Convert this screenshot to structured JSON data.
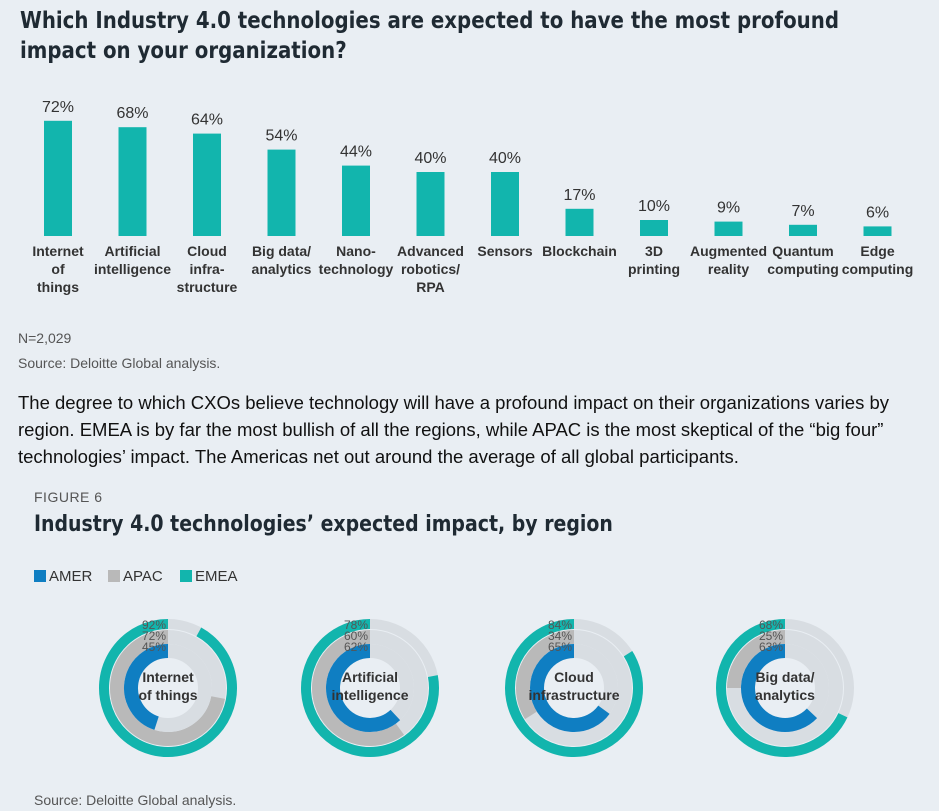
{
  "title": "Which Industry 4.0 technologies are expected to have the most profound impact on your organization?",
  "n_note": "N=2,029",
  "source_top": "Source: Deloitte Global analysis.",
  "paragraph": "The degree to which CXOs believe technology will have a profound impact on their organizations varies by region. EMEA is by far the most bullish of all the regions, while APAC is the most skeptical of the “big four” technologies’ impact. The Americas net out around the average of all global participants.",
  "figure_label": "FIGURE 6",
  "figure_title": "Industry 4.0 technologies’ expected impact, by region",
  "source_bottom": "Source: Deloitte Global analysis.",
  "colors": {
    "bar": "#12b5ad",
    "amer": "#0f7ec2",
    "apac": "#b9b9b9",
    "emea": "#12b5ad",
    "track": "#d8dde2"
  },
  "chart_data": [
    {
      "type": "bar",
      "categories": [
        "Internet of things",
        "Artificial intelligence",
        "Cloud infrastructure",
        "Big data/ analytics",
        "Nano-technology",
        "Advanced robotics/ RPA",
        "Sensors",
        "Blockchain",
        "3D printing",
        "Augmented reality",
        "Quantum computing",
        "Edge computing"
      ],
      "category_lines": [
        [
          "Internet",
          "of",
          "things"
        ],
        [
          "Artificial",
          "intelligence"
        ],
        [
          "Cloud",
          "infra-",
          "structure"
        ],
        [
          "Big data/",
          "analytics"
        ],
        [
          "Nano-",
          "technology"
        ],
        [
          "Advanced",
          "robotics/",
          "RPA"
        ],
        [
          "Sensors"
        ],
        [
          "Blockchain"
        ],
        [
          "3D",
          "printing"
        ],
        [
          "Augmented",
          "reality"
        ],
        [
          "Quantum",
          "computing"
        ],
        [
          "Edge",
          "computing"
        ]
      ],
      "values": [
        72,
        68,
        64,
        54,
        44,
        40,
        40,
        17,
        10,
        9,
        7,
        6
      ],
      "value_labels": [
        "72%",
        "68%",
        "64%",
        "54%",
        "44%",
        "40%",
        "40%",
        "17%",
        "10%",
        "9%",
        "7%",
        "6%"
      ],
      "ylim": [
        0,
        100
      ],
      "grid": false
    },
    {
      "type": "radial-bar",
      "legend": [
        "AMER",
        "APAC",
        "EMEA"
      ],
      "legend_placement": "top-left",
      "panels": [
        {
          "label_lines": [
            "Internet",
            "of things"
          ],
          "values": {
            "EMEA": 92,
            "APAC": 72,
            "AMER": 45
          },
          "value_labels": [
            "92%",
            "72%",
            "45%"
          ]
        },
        {
          "label_lines": [
            "Artificial",
            "intelligence"
          ],
          "values": {
            "EMEA": 78,
            "APAC": 60,
            "AMER": 62
          },
          "value_labels": [
            "78%",
            "60%",
            "62%"
          ]
        },
        {
          "label_lines": [
            "Cloud",
            "infrastructure"
          ],
          "values": {
            "EMEA": 84,
            "APAC": 34,
            "AMER": 65
          },
          "value_labels": [
            "84%",
            "34%",
            "65%"
          ]
        },
        {
          "label_lines": [
            "Big data/",
            "analytics"
          ],
          "values": {
            "EMEA": 68,
            "APAC": 25,
            "AMER": 63
          },
          "value_labels": [
            "68%",
            "25%",
            "63%"
          ]
        }
      ]
    }
  ]
}
